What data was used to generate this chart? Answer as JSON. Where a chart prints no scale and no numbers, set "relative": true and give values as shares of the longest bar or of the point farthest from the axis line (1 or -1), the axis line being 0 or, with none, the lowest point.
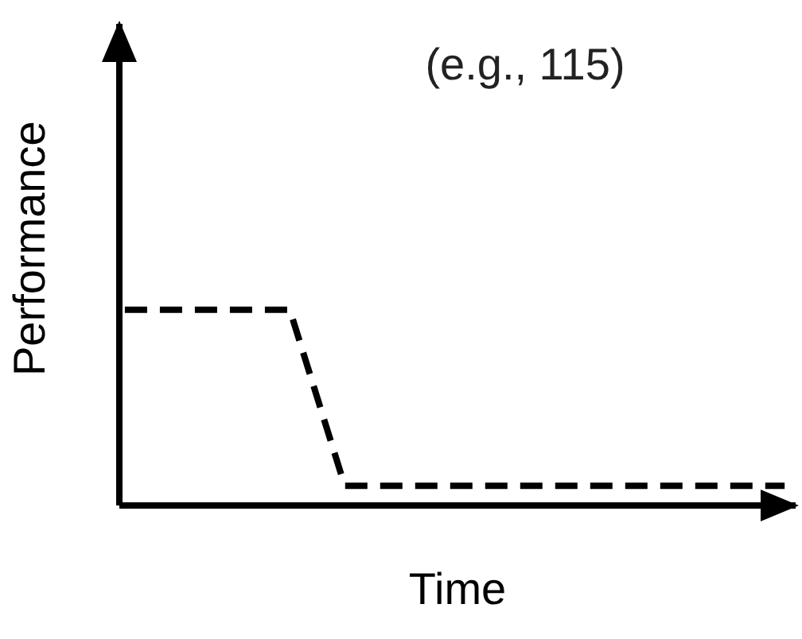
{
  "chart_data": {
    "type": "line",
    "subtitle": "(e.g., 115)",
    "xlabel": "Time",
    "ylabel": "Performance",
    "relative": true,
    "categories": [
      null,
      null,
      null,
      null,
      null,
      null,
      null,
      null,
      null,
      null,
      null,
      null,
      null
    ],
    "series": [
      {
        "color": "#000000",
        "values": [
          1,
          1,
          1,
          1,
          0.1,
          0.1,
          0.1,
          0.1,
          0.1,
          0.1,
          0.1,
          0.1,
          0.1
        ]
      }
    ],
    "line_style": "dashed",
    "marker": "none",
    "grid": false,
    "legend": false
  }
}
